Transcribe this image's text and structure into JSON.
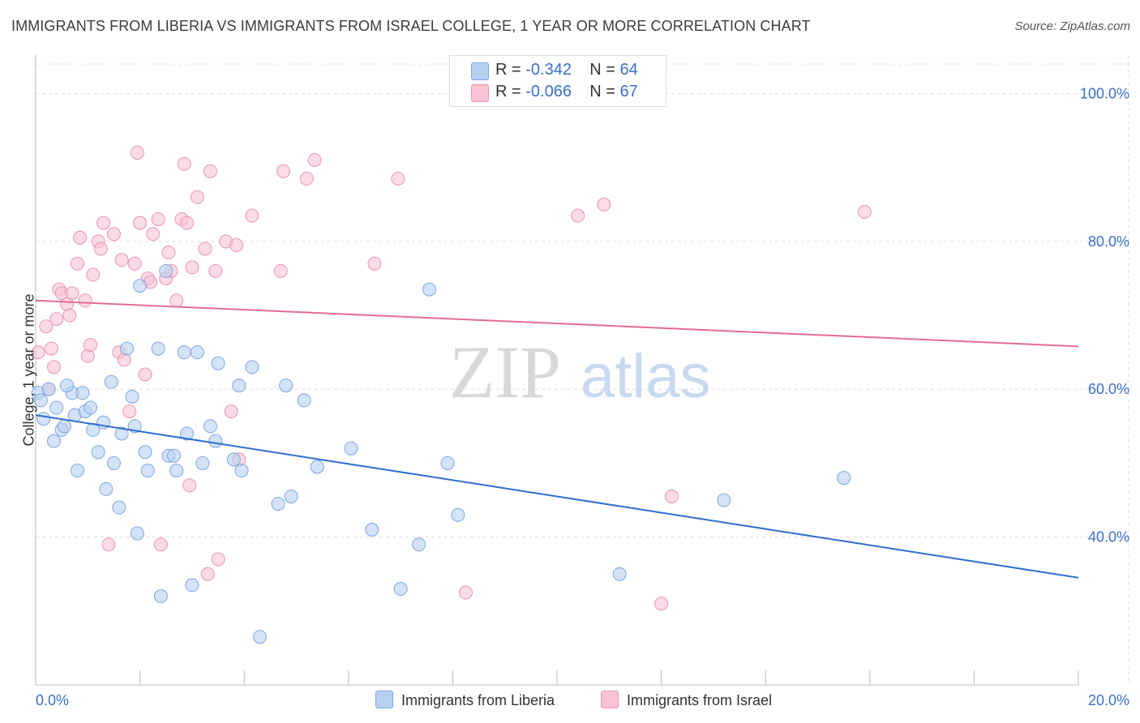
{
  "title": "IMMIGRANTS FROM LIBERIA VS IMMIGRANTS FROM ISRAEL COLLEGE, 1 YEAR OR MORE CORRELATION CHART",
  "source": "Source: ZipAtlas.com",
  "watermark": {
    "zip": "ZIP",
    "atlas": "atlas"
  },
  "legend_top": {
    "liberia": {
      "r_label": "R = ",
      "r_value": "-0.342",
      "n_label": "N = ",
      "n_value": "64"
    },
    "israel": {
      "r_label": "R = ",
      "r_value": "-0.066",
      "n_label": "N = ",
      "n_value": "67"
    }
  },
  "legend_bottom": {
    "liberia": "Immigrants from Liberia",
    "israel": "Immigrants from Israel"
  },
  "colors": {
    "liberia_fill": "#b7d0f2",
    "liberia_stroke": "#7ea6e0",
    "liberia_line": "#2e6fd1",
    "israel_fill": "#f8c3d3",
    "israel_stroke": "#e896b1",
    "israel_line": "#e36c93",
    "tick_label": "#3b6fc9",
    "grid": "#dddddd"
  },
  "chart_data": {
    "type": "scatter",
    "title": "IMMIGRANTS FROM LIBERIA VS IMMIGRANTS FROM ISRAEL COLLEGE, 1 YEAR OR MORE CORRELATION CHART",
    "xlabel": "",
    "ylabel": "College, 1 year or more",
    "xlim": [
      0,
      20
    ],
    "ylim": [
      20,
      104
    ],
    "x_tick_labels": [
      "0.0%",
      "20.0%"
    ],
    "y_ticks": [
      40,
      60,
      80,
      100
    ],
    "y_tick_labels": [
      "40.0%",
      "60.0%",
      "80.0%",
      "100.0%"
    ],
    "grid": true,
    "legend": "top-center",
    "series": [
      {
        "name": "Immigrants from Liberia",
        "trend": {
          "x": [
            0,
            20
          ],
          "y": [
            56.5,
            34.5
          ]
        },
        "points": [
          [
            0.05,
            59.5
          ],
          [
            0.1,
            58.5
          ],
          [
            0.25,
            60.0
          ],
          [
            0.35,
            53.0
          ],
          [
            0.4,
            57.5
          ],
          [
            0.5,
            54.5
          ],
          [
            0.55,
            55.0
          ],
          [
            0.7,
            59.5
          ],
          [
            0.75,
            56.5
          ],
          [
            0.8,
            49.0
          ],
          [
            0.9,
            59.5
          ],
          [
            0.95,
            57.0
          ],
          [
            1.05,
            57.5
          ],
          [
            1.1,
            54.5
          ],
          [
            1.2,
            51.5
          ],
          [
            1.3,
            55.5
          ],
          [
            1.35,
            46.5
          ],
          [
            1.45,
            61.0
          ],
          [
            1.5,
            50.0
          ],
          [
            1.6,
            44.0
          ],
          [
            1.65,
            54.0
          ],
          [
            1.75,
            65.5
          ],
          [
            1.85,
            59.0
          ],
          [
            1.9,
            55.0
          ],
          [
            1.95,
            40.5
          ],
          [
            2.0,
            74.0
          ],
          [
            2.1,
            51.5
          ],
          [
            2.15,
            49.0
          ],
          [
            2.35,
            65.5
          ],
          [
            2.4,
            32.0
          ],
          [
            2.5,
            76.0
          ],
          [
            2.55,
            51.0
          ],
          [
            2.65,
            51.0
          ],
          [
            2.7,
            49.0
          ],
          [
            2.85,
            65.0
          ],
          [
            2.9,
            54.0
          ],
          [
            3.0,
            33.5
          ],
          [
            3.1,
            65.0
          ],
          [
            3.2,
            50.0
          ],
          [
            3.35,
            55.0
          ],
          [
            3.45,
            53.0
          ],
          [
            3.5,
            63.5
          ],
          [
            3.8,
            50.5
          ],
          [
            3.9,
            60.5
          ],
          [
            3.95,
            49.0
          ],
          [
            4.15,
            63.0
          ],
          [
            4.3,
            26.5
          ],
          [
            4.65,
            44.5
          ],
          [
            4.8,
            60.5
          ],
          [
            4.9,
            45.5
          ],
          [
            5.15,
            58.5
          ],
          [
            5.4,
            49.5
          ],
          [
            6.05,
            52.0
          ],
          [
            6.45,
            41.0
          ],
          [
            7.0,
            33.0
          ],
          [
            7.35,
            39.0
          ],
          [
            7.55,
            73.5
          ],
          [
            7.9,
            50.0
          ],
          [
            8.1,
            43.0
          ],
          [
            11.2,
            35.0
          ],
          [
            13.2,
            45.0
          ],
          [
            15.5,
            48.0
          ],
          [
            0.15,
            56.0
          ],
          [
            0.6,
            60.5
          ]
        ]
      },
      {
        "name": "Immigrants from Israel",
        "trend": {
          "x": [
            0,
            20
          ],
          "y": [
            72.0,
            65.8
          ]
        },
        "points": [
          [
            0.05,
            65.0
          ],
          [
            0.2,
            68.5
          ],
          [
            0.25,
            60.0
          ],
          [
            0.35,
            63.0
          ],
          [
            0.4,
            69.5
          ],
          [
            0.45,
            73.5
          ],
          [
            0.5,
            73.0
          ],
          [
            0.6,
            71.5
          ],
          [
            0.65,
            70.0
          ],
          [
            0.7,
            73.0
          ],
          [
            0.8,
            77.0
          ],
          [
            0.85,
            80.5
          ],
          [
            0.95,
            72.0
          ],
          [
            1.0,
            64.5
          ],
          [
            1.05,
            66.0
          ],
          [
            1.1,
            75.5
          ],
          [
            1.2,
            80.0
          ],
          [
            1.25,
            79.0
          ],
          [
            1.3,
            82.5
          ],
          [
            1.4,
            39.0
          ],
          [
            1.5,
            81.0
          ],
          [
            1.6,
            65.0
          ],
          [
            1.65,
            77.5
          ],
          [
            1.7,
            64.0
          ],
          [
            1.8,
            57.0
          ],
          [
            1.9,
            77.0
          ],
          [
            1.95,
            92.0
          ],
          [
            2.0,
            82.5
          ],
          [
            2.1,
            62.0
          ],
          [
            2.15,
            75.0
          ],
          [
            2.2,
            74.5
          ],
          [
            2.25,
            81.0
          ],
          [
            2.35,
            83.0
          ],
          [
            2.4,
            39.0
          ],
          [
            2.5,
            75.0
          ],
          [
            2.55,
            78.5
          ],
          [
            2.6,
            76.0
          ],
          [
            2.7,
            72.0
          ],
          [
            2.8,
            83.0
          ],
          [
            2.85,
            90.5
          ],
          [
            2.9,
            82.5
          ],
          [
            2.95,
            47.0
          ],
          [
            3.0,
            76.5
          ],
          [
            3.1,
            86.0
          ],
          [
            3.25,
            79.0
          ],
          [
            3.3,
            35.0
          ],
          [
            3.35,
            89.5
          ],
          [
            3.45,
            76.0
          ],
          [
            3.5,
            37.0
          ],
          [
            3.65,
            80.0
          ],
          [
            3.75,
            57.0
          ],
          [
            3.85,
            79.5
          ],
          [
            3.9,
            50.5
          ],
          [
            4.15,
            83.5
          ],
          [
            4.7,
            76.0
          ],
          [
            4.75,
            89.5
          ],
          [
            5.2,
            88.5
          ],
          [
            5.35,
            91.0
          ],
          [
            6.5,
            77.0
          ],
          [
            6.95,
            88.5
          ],
          [
            8.25,
            32.5
          ],
          [
            10.4,
            83.5
          ],
          [
            10.9,
            85.0
          ],
          [
            12.0,
            31.0
          ],
          [
            12.2,
            45.5
          ],
          [
            15.9,
            84.0
          ],
          [
            0.3,
            65.5
          ]
        ]
      }
    ]
  }
}
